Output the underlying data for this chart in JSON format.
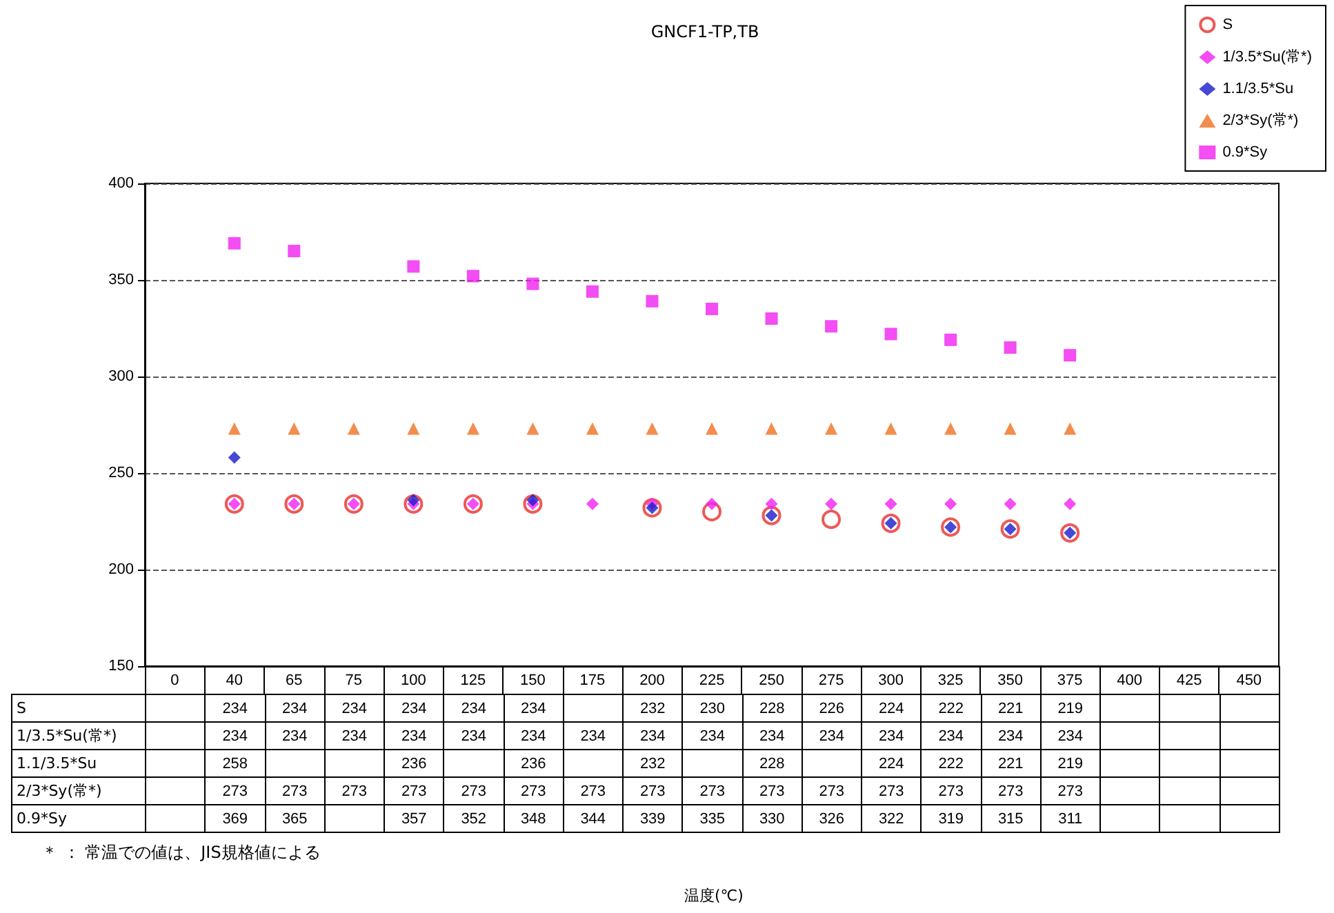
{
  "chart_data": {
    "type": "scatter",
    "title": "GNCF1-TP,TB",
    "categories": [
      "0",
      "40",
      "65",
      "75",
      "100",
      "125",
      "150",
      "175",
      "200",
      "225",
      "250",
      "275",
      "300",
      "325",
      "350",
      "375",
      "400",
      "425",
      "450"
    ],
    "series": [
      {
        "name": "S",
        "color": "#e8302a",
        "marker": "circle",
        "values": [
          null,
          234,
          234,
          234,
          234,
          234,
          234,
          null,
          232,
          230,
          228,
          226,
          224,
          222,
          221,
          219,
          null,
          null,
          null
        ]
      },
      {
        "name": "1/3.5*Su(常*)",
        "color": "#f020f0",
        "marker": "diamond",
        "values": [
          null,
          234,
          234,
          234,
          234,
          234,
          234,
          234,
          234,
          234,
          234,
          234,
          234,
          234,
          234,
          234,
          null,
          null,
          null
        ]
      },
      {
        "name": "1.1/3.5*Su",
        "color": "#1a1acc",
        "marker": "diamond",
        "values": [
          null,
          258,
          null,
          null,
          236,
          null,
          236,
          null,
          232,
          null,
          228,
          null,
          224,
          222,
          221,
          219,
          null,
          null,
          null
        ]
      },
      {
        "name": "2/3*Sy(常*)",
        "color": "#f07020",
        "marker": "triangle",
        "values": [
          null,
          273,
          273,
          273,
          273,
          273,
          273,
          273,
          273,
          273,
          273,
          273,
          273,
          273,
          273,
          273,
          null,
          null,
          null
        ]
      },
      {
        "name": "0.9*Sy",
        "color": "#f020f0",
        "marker": "square",
        "values": [
          null,
          369,
          365,
          null,
          357,
          352,
          348,
          344,
          339,
          335,
          330,
          326,
          322,
          319,
          315,
          311,
          null,
          null,
          null
        ]
      }
    ],
    "ylim": [
      150,
      400
    ],
    "yticks": [
      150,
      200,
      250,
      300,
      350,
      400
    ],
    "grid": "y",
    "legend": "top right",
    "data_labels": true,
    "annotations": [
      "＊ ： 常温での値は、JIS規格値による",
      "温度(℃)"
    ]
  }
}
